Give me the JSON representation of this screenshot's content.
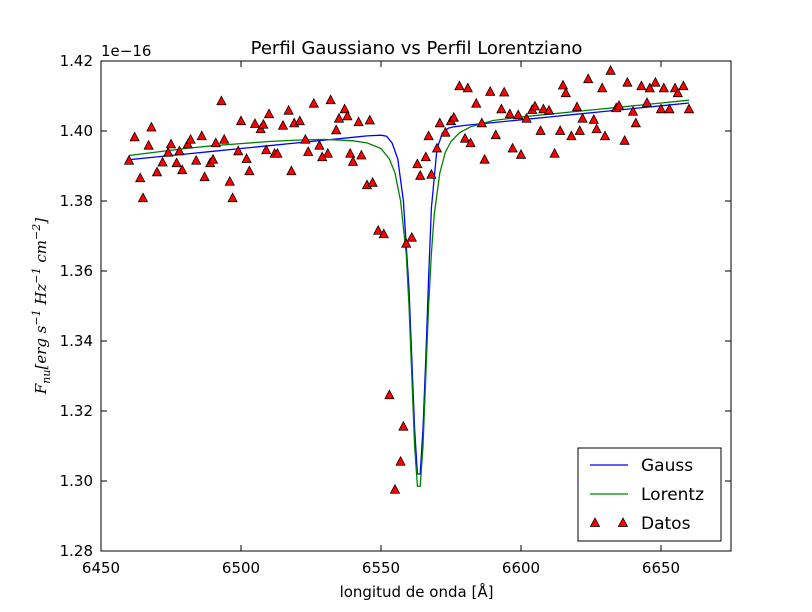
{
  "chart_data": {
    "type": "line",
    "title": "Perfil Gaussiano vs Perfil Lorentziano",
    "xlabel": "longitud de onda [Å]",
    "ylabel_parts": [
      "F",
      "nu",
      "[erg  s",
      "−1",
      "  Hz",
      "−1",
      "  cm",
      "−2",
      "]"
    ],
    "offset_text": "1e−16",
    "xlim": [
      6450,
      6675
    ],
    "ylim": [
      1.28,
      1.42
    ],
    "xticks": [
      6450,
      6500,
      6550,
      6600,
      6650
    ],
    "yticks": [
      "1.28",
      "1.30",
      "1.32",
      "1.34",
      "1.36",
      "1.38",
      "1.40",
      "1.42"
    ],
    "legend_position": "lower-right",
    "grid": false,
    "series": [
      {
        "name": "Gauss",
        "kind": "line",
        "color": "#0000ff",
        "x": [
          6460,
          6470,
          6480,
          6490,
          6500,
          6510,
          6520,
          6530,
          6540,
          6545,
          6550,
          6552,
          6554,
          6556,
          6558,
          6560,
          6561,
          6562,
          6563,
          6564,
          6565,
          6566,
          6567,
          6568,
          6570,
          6572,
          6574,
          6576,
          6580,
          6590,
          6600,
          6610,
          6620,
          6630,
          6640,
          6650,
          6660
        ],
        "y": [
          1.3918,
          1.3926,
          1.3934,
          1.3942,
          1.395,
          1.3958,
          1.3966,
          1.3974,
          1.3982,
          1.3986,
          1.3988,
          1.3985,
          1.3965,
          1.392,
          1.38,
          1.355,
          1.335,
          1.315,
          1.302,
          1.302,
          1.315,
          1.335,
          1.358,
          1.378,
          1.395,
          1.3995,
          1.4008,
          1.4012,
          1.4016,
          1.4024,
          1.4032,
          1.404,
          1.4048,
          1.4056,
          1.4064,
          1.4072,
          1.408
        ]
      },
      {
        "name": "Lorentz",
        "kind": "line",
        "color": "#008000",
        "x": [
          6460,
          6470,
          6480,
          6490,
          6500,
          6510,
          6520,
          6530,
          6540,
          6545,
          6550,
          6553,
          6555,
          6557,
          6559,
          6560,
          6561,
          6562,
          6563,
          6564,
          6565,
          6566,
          6567,
          6568,
          6569,
          6571,
          6573,
          6575,
          6578,
          6582,
          6590,
          6600,
          6610,
          6620,
          6630,
          6640,
          6650,
          6660
        ],
        "y": [
          1.393,
          1.394,
          1.395,
          1.3958,
          1.3964,
          1.397,
          1.3974,
          1.3976,
          1.3972,
          1.3966,
          1.395,
          1.392,
          1.388,
          1.38,
          1.365,
          1.35,
          1.33,
          1.31,
          1.2985,
          1.2985,
          1.31,
          1.33,
          1.35,
          1.365,
          1.376,
          1.388,
          1.394,
          1.397,
          1.3995,
          1.4012,
          1.403,
          1.404,
          1.4048,
          1.4056,
          1.4064,
          1.4072,
          1.408,
          1.4088
        ]
      },
      {
        "name": "Datos",
        "kind": "scatter",
        "marker": "triangle-up",
        "color": "#ff0000",
        "x": [
          6460,
          6462,
          6464,
          6465,
          6467,
          6468,
          6470,
          6472,
          6474,
          6475,
          6477,
          6478,
          6479,
          6481,
          6482,
          6484,
          6486,
          6487,
          6489,
          6490,
          6491,
          6493,
          6494,
          6496,
          6497,
          6499,
          6500,
          6502,
          6503,
          6505,
          6507,
          6508,
          6509,
          6510,
          6512,
          6513,
          6515,
          6517,
          6518,
          6519,
          6521,
          6523,
          6524,
          6526,
          6528,
          6529,
          6531,
          6532,
          6534,
          6535,
          6537,
          6538,
          6539,
          6540,
          6542,
          6543,
          6545,
          6546,
          6547,
          6549,
          6551,
          6553,
          6555,
          6557,
          6558,
          6559,
          6561,
          6563,
          6564,
          6566,
          6567,
          6568,
          6570,
          6571,
          6573,
          6575,
          6576,
          6578,
          6580,
          6581,
          6582,
          6584,
          6586,
          6587,
          6589,
          6591,
          6593,
          6594,
          6596,
          6597,
          6599,
          6600,
          6602,
          6604,
          6605,
          6607,
          6608,
          6610,
          6612,
          6614,
          6615,
          6616,
          6618,
          6620,
          6621,
          6622,
          6624,
          6626,
          6627,
          6629,
          6630,
          6632,
          6634,
          6635,
          6637,
          6638,
          6640,
          6641,
          6643,
          6645,
          6646,
          6648,
          6650,
          6651,
          6653,
          6655,
          6656,
          6658,
          6660
        ],
        "y": [
          1.3915,
          1.3982,
          1.3865,
          1.3808,
          1.3958,
          1.401,
          1.3882,
          1.391,
          1.3938,
          1.3962,
          1.3908,
          1.3942,
          1.3888,
          1.3962,
          1.3975,
          1.3915,
          1.3985,
          1.3868,
          1.3908,
          1.3918,
          1.3965,
          1.4085,
          1.3975,
          1.3855,
          1.3808,
          1.3942,
          1.4028,
          1.392,
          1.3885,
          1.402,
          1.4005,
          1.4018,
          1.3945,
          1.4048,
          1.3935,
          1.3935,
          1.4015,
          1.4058,
          1.3885,
          1.4022,
          1.4028,
          1.3975,
          1.394,
          1.4078,
          1.3958,
          1.3925,
          1.3935,
          1.4088,
          1.4002,
          1.4035,
          1.4062,
          1.4042,
          1.3935,
          1.3912,
          1.4025,
          1.393,
          1.3845,
          1.403,
          1.3852,
          1.3715,
          1.3705,
          1.3245,
          1.2975,
          1.3055,
          1.3155,
          1.3678,
          1.3695,
          1.3905,
          1.3872,
          1.3925,
          1.3985,
          1.3875,
          1.395,
          1.4022,
          1.3995,
          1.4028,
          1.4038,
          1.4128,
          1.3978,
          1.4122,
          1.3965,
          1.4078,
          1.4022,
          1.3918,
          1.4112,
          1.3988,
          1.4062,
          1.411,
          1.4048,
          1.395,
          1.4045,
          1.3932,
          1.4035,
          1.406,
          1.407,
          1.4,
          1.4062,
          1.4058,
          1.3935,
          1.4,
          1.413,
          1.4108,
          1.3985,
          1.4068,
          1.4,
          1.4035,
          1.4148,
          1.4032,
          1.4005,
          1.4122,
          1.3985,
          1.4172,
          1.4065,
          1.4072,
          1.3972,
          1.4138,
          1.4055,
          1.4022,
          1.4128,
          1.408,
          1.4122,
          1.4138,
          1.4062,
          1.4122,
          1.4062,
          1.4122,
          1.4108,
          1.4128,
          1.4062
        ]
      }
    ]
  }
}
